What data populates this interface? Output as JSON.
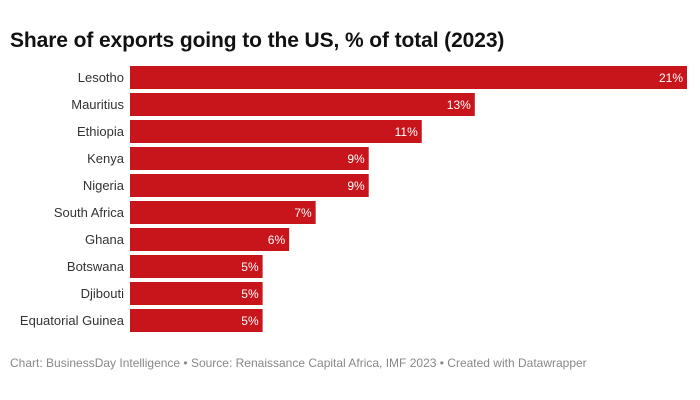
{
  "chart_data": {
    "type": "bar",
    "orientation": "horizontal",
    "title": "Share of exports going to the US, % of total (2023)",
    "categories": [
      "Lesotho",
      "Mauritius",
      "Ethiopia",
      "Kenya",
      "Nigeria",
      "South Africa",
      "Ghana",
      "Botswana",
      "Djibouti",
      "Equatorial Guinea"
    ],
    "values": [
      21,
      13,
      11,
      9,
      9,
      7,
      6,
      5,
      5,
      5
    ],
    "value_labels": [
      "21%",
      "13%",
      "11%",
      "9%",
      "9%",
      "7%",
      "6%",
      "5%",
      "5%",
      "5%"
    ],
    "xlim": [
      0,
      21
    ],
    "bar_color": "#c8151b",
    "grid": false,
    "legend": "none"
  },
  "footer": {
    "text": "Chart: BusinessDay Intelligence • Source: Renaissance Capital Africa, IMF 2023 • Created with Datawrapper"
  }
}
